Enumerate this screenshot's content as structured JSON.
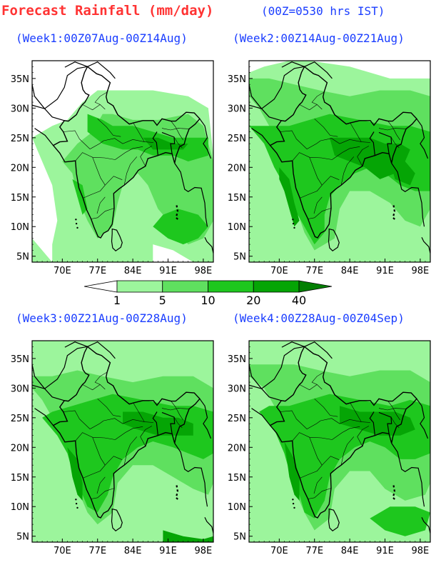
{
  "header": {
    "title": "Forecast Rainfall (mm/day)",
    "time_note": "(00Z=0530 hrs IST)"
  },
  "legend": {
    "labels": [
      "1",
      "5",
      "10",
      "20",
      "40"
    ],
    "colors": [
      "#ffffff",
      "#9cf59c",
      "#5fe05f",
      "#1ec71e",
      "#05a505",
      "#037f03"
    ]
  },
  "map": {
    "x_ticks": [
      "70E",
      "77E",
      "84E",
      "91E",
      "98E"
    ],
    "y_ticks": [
      "35N",
      "30N",
      "25N",
      "20N",
      "15N",
      "10N",
      "5N"
    ]
  },
  "panels": [
    {
      "id": "week1",
      "title": "(Week1:00Z07Aug-00Z14Aug)"
    },
    {
      "id": "week2",
      "title": "(Week2:00Z14Aug-00Z21Aug)"
    },
    {
      "id": "week3",
      "title": "(Week3:00Z21Aug-00Z28Aug)"
    },
    {
      "id": "week4",
      "title": "(Week4:00Z28Aug-00Z04Sep)"
    }
  ]
}
